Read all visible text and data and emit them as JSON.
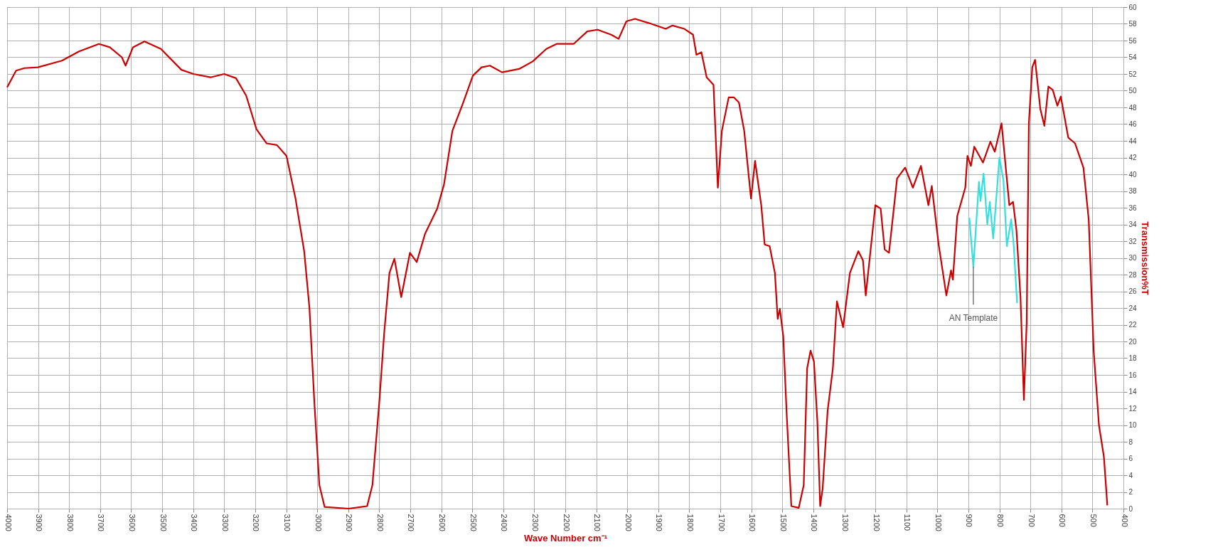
{
  "chart_data": {
    "type": "line",
    "xlabel": "Wave Number cm⁻¹",
    "ylabel": "Transmission%T",
    "xlim": [
      4000,
      400
    ],
    "xticks": [
      4000,
      3900,
      3800,
      3700,
      3600,
      3500,
      3400,
      3300,
      3200,
      3100,
      3000,
      2900,
      2800,
      2700,
      2600,
      2500,
      2400,
      2300,
      2200,
      2100,
      2000,
      1900,
      1800,
      1700,
      1600,
      1500,
      1400,
      1300,
      1200,
      1100,
      1000,
      900,
      800,
      700,
      600,
      500,
      400
    ],
    "ylim": [
      0,
      60
    ],
    "yticks": [
      0,
      2,
      4,
      6,
      8,
      10,
      12,
      14,
      16,
      18,
      20,
      22,
      24,
      26,
      28,
      30,
      32,
      34,
      36,
      38,
      40,
      42,
      44,
      46,
      48,
      50,
      52,
      54,
      56,
      58,
      60
    ],
    "grid": true,
    "marker": "none",
    "line_style": "solid",
    "annotations": [
      {
        "text": "AN Template",
        "x": 884,
        "y": 28.9
      }
    ],
    "series": [
      {
        "color": "#cc0000",
        "x": [
          4000,
          3971,
          3944,
          3901,
          3823,
          3768,
          3704,
          3669,
          3630,
          3618,
          3594,
          3557,
          3504,
          3438,
          3399,
          3344,
          3300,
          3262,
          3229,
          3196,
          3163,
          3130,
          3099,
          3070,
          3042,
          3025,
          3009,
          2993,
          2976,
          2899,
          2839,
          2822,
          2800,
          2784,
          2767,
          2751,
          2729,
          2701,
          2679,
          2652,
          2613,
          2591,
          2564,
          2531,
          2498,
          2470,
          2443,
          2404,
          2349,
          2305,
          2261,
          2228,
          2173,
          2129,
          2096,
          2052,
          2028,
          2003,
          1975,
          1931,
          1876,
          1854,
          1816,
          1788,
          1777,
          1761,
          1744,
          1722,
          1708,
          1695,
          1673,
          1656,
          1640,
          1623,
          1601,
          1588,
          1568,
          1557,
          1541,
          1524,
          1515,
          1508,
          1497,
          1486,
          1471,
          1447,
          1431,
          1420,
          1409,
          1398,
          1387,
          1378,
          1370,
          1354,
          1337,
          1324,
          1304,
          1282,
          1255,
          1240,
          1231,
          1200,
          1183,
          1170,
          1156,
          1130,
          1104,
          1079,
          1053,
          1029,
          1018,
          996,
          971,
          956,
          950,
          936,
          910,
          903,
          892,
          881,
          853,
          829,
          815,
          793,
          768,
          756,
          745,
          732,
          721,
          712,
          705,
          694,
          685,
          668,
          655,
          642,
          628,
          613,
          602,
          578,
          556,
          529,
          512,
          496,
          479,
          463,
          452
        ],
        "values": [
          50.4,
          52.4,
          52.7,
          52.8,
          53.6,
          54.7,
          55.6,
          55.2,
          54.0,
          53.0,
          55.2,
          55.9,
          55.0,
          52.5,
          52.0,
          51.6,
          52.0,
          51.5,
          49.4,
          45.4,
          43.7,
          43.5,
          42.2,
          37.1,
          30.8,
          24.0,
          12.6,
          2.8,
          0.2,
          0,
          0.3,
          2.8,
          12.6,
          21.0,
          28.2,
          29.9,
          25.3,
          30.6,
          29.5,
          32.9,
          35.9,
          38.8,
          45.2,
          48.4,
          51.8,
          52.8,
          53.0,
          52.2,
          52.6,
          53.5,
          55.0,
          55.6,
          55.6,
          57.1,
          57.3,
          56.7,
          56.2,
          58.3,
          58.6,
          58.1,
          57.4,
          57.8,
          57.4,
          56.7,
          54.3,
          54.6,
          51.6,
          50.7,
          38.4,
          45.2,
          49.2,
          49.2,
          48.6,
          45.2,
          37.1,
          41.6,
          36.3,
          31.6,
          31.4,
          28.2,
          22.7,
          23.9,
          20.6,
          11.3,
          0.3,
          0.1,
          2.8,
          16.8,
          18.9,
          17.6,
          10.4,
          0.3,
          2.4,
          11.7,
          16.8,
          24.8,
          21.7,
          28.2,
          30.8,
          29.7,
          25.5,
          36.3,
          35.9,
          31.0,
          30.6,
          39.5,
          40.8,
          38.4,
          41.0,
          36.3,
          38.6,
          31.6,
          25.5,
          28.5,
          27.4,
          35.0,
          38.4,
          42.2,
          41.0,
          43.3,
          41.4,
          43.9,
          42.7,
          46.1,
          36.3,
          36.7,
          33.3,
          25.3,
          13.0,
          22.3,
          46.1,
          52.8,
          53.7,
          47.8,
          45.8,
          50.5,
          50.1,
          48.2,
          49.3,
          44.4,
          43.7,
          40.8,
          34.6,
          18.9,
          10.0,
          6.2,
          0.4
        ]
      },
      {
        "color": "#33e0e0",
        "x": [
          897,
          884,
          866,
          861,
          851,
          839,
          831,
          820,
          800,
          787,
          776,
          762,
          754,
          743
        ],
        "values": [
          34.8,
          28.9,
          39.1,
          36.8,
          40.1,
          34.0,
          36.7,
          32.3,
          42.0,
          39.3,
          31.4,
          34.6,
          31.6,
          24.6
        ]
      }
    ]
  }
}
